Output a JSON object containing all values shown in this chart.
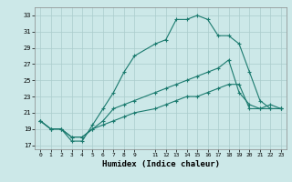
{
  "xlabel": "Humidex (Indice chaleur)",
  "background_color": "#cce8e8",
  "grid_color": "#aacccc",
  "line_color": "#1a7a6e",
  "xlim": [
    -0.5,
    23.5
  ],
  "ylim": [
    16.5,
    34.0
  ],
  "xticks": [
    0,
    1,
    2,
    3,
    4,
    5,
    6,
    7,
    8,
    9,
    11,
    12,
    13,
    14,
    15,
    16,
    17,
    18,
    19,
    20,
    21,
    22,
    23
  ],
  "yticks": [
    17,
    19,
    21,
    23,
    25,
    27,
    29,
    31,
    33
  ],
  "line1_x": [
    0,
    1,
    2,
    3,
    4,
    5,
    6,
    7,
    8,
    9,
    11,
    12,
    13,
    14,
    15,
    16,
    17,
    18,
    19,
    20,
    21,
    22,
    23
  ],
  "line1_y": [
    20.0,
    19.0,
    19.0,
    17.5,
    17.5,
    19.5,
    21.5,
    23.5,
    26.0,
    28.0,
    29.5,
    30.0,
    32.5,
    32.5,
    33.0,
    32.5,
    30.5,
    30.5,
    29.5,
    26.0,
    22.5,
    21.5,
    21.5
  ],
  "line2_x": [
    0,
    1,
    2,
    3,
    4,
    5,
    6,
    7,
    8,
    9,
    11,
    12,
    13,
    14,
    15,
    16,
    17,
    18,
    19,
    20,
    21,
    22,
    23
  ],
  "line2_y": [
    20.0,
    19.0,
    19.0,
    18.0,
    18.0,
    19.0,
    20.0,
    21.5,
    22.0,
    22.5,
    23.5,
    24.0,
    24.5,
    25.0,
    25.5,
    26.0,
    26.5,
    27.5,
    23.5,
    22.0,
    21.5,
    21.5,
    21.5
  ],
  "line3_x": [
    0,
    1,
    2,
    3,
    4,
    5,
    6,
    7,
    8,
    9,
    11,
    12,
    13,
    14,
    15,
    16,
    17,
    18,
    19,
    20,
    21,
    22,
    23
  ],
  "line3_y": [
    20.0,
    19.0,
    19.0,
    18.0,
    18.0,
    19.0,
    19.5,
    20.0,
    20.5,
    21.0,
    21.5,
    22.0,
    22.5,
    23.0,
    23.0,
    23.5,
    24.0,
    24.5,
    24.5,
    21.5,
    21.5,
    22.0,
    21.5
  ]
}
